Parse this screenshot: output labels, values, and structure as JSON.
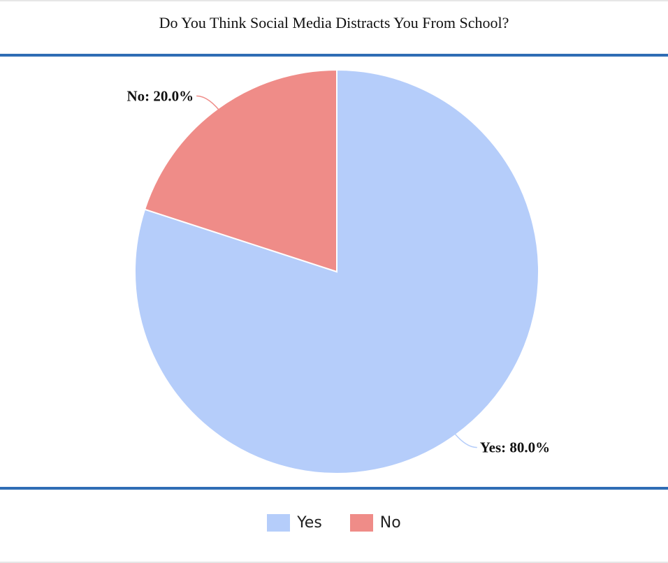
{
  "chart_data": {
    "type": "pie",
    "title": "Do You Think Social Media Distracts You From School?",
    "categories": [
      "Yes",
      "No"
    ],
    "values": [
      80.0,
      20.0
    ],
    "labels": [
      "Yes: 80.0%",
      "No: 20.0%"
    ],
    "colors": [
      "#b5cdfa",
      "#ef8c88"
    ],
    "legend_position": "bottom",
    "start_angle_deg": 0,
    "direction": "clockwise"
  }
}
